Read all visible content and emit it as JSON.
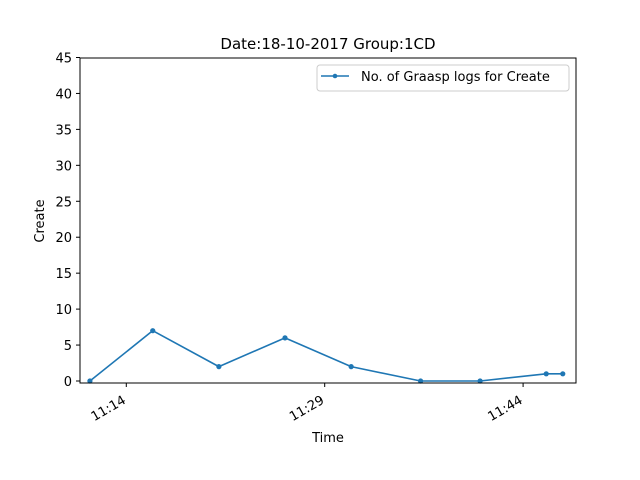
{
  "chart_data": {
    "type": "line",
    "title": "Date:18-10-2017  Group:1CD",
    "xlabel": "Time",
    "ylabel": "Create",
    "ylim": [
      0,
      45
    ],
    "yticks": [
      0,
      5,
      10,
      15,
      20,
      25,
      30,
      35,
      40,
      45
    ],
    "xlim": [
      "11:10:30",
      "11:48:00"
    ],
    "xticks": [
      "11:14",
      "11:29",
      "11:44"
    ],
    "legend_position": "top-right",
    "grid": false,
    "series": [
      {
        "name": "No. of Graasp logs for Create",
        "color": "#1f77b4",
        "x": [
          "11:11:15",
          "11:16:00",
          "11:21:00",
          "11:26:00",
          "11:31:00",
          "11:36:15",
          "11:40:45",
          "11:45:45",
          "11:47:00"
        ],
        "y": [
          0,
          7,
          2,
          6,
          2,
          0,
          0,
          1,
          1
        ]
      }
    ]
  }
}
